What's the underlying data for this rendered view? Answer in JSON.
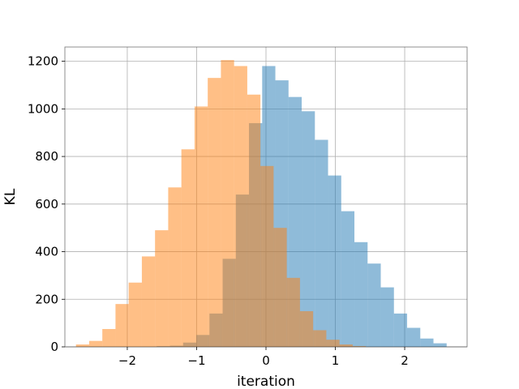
{
  "chart_data": {
    "type": "bar",
    "subtype": "overlapping-histogram",
    "title": "",
    "xlabel": "iteration",
    "ylabel": "KL",
    "xlim": [
      -2.9,
      2.9
    ],
    "ylim": [
      0,
      1260
    ],
    "xticks": [
      -2,
      -1,
      0,
      1,
      2
    ],
    "xtick_labels": [
      "−2",
      "−1",
      "0",
      "1",
      "2"
    ],
    "yticks": [
      0,
      200,
      400,
      600,
      800,
      1000,
      1200
    ],
    "ytick_labels": [
      "0",
      "200",
      "400",
      "600",
      "800",
      "1000",
      "1200"
    ],
    "grid": true,
    "legend": "none",
    "series": [
      {
        "color": "#1f77b4",
        "opacity": 0.5,
        "bin_edges": [
          -1.575,
          -1.385,
          -1.195,
          -1.005,
          -0.815,
          -0.625,
          -0.435,
          -0.245,
          -0.055,
          0.135,
          0.325,
          0.515,
          0.705,
          0.895,
          1.085,
          1.275,
          1.465,
          1.655,
          1.845,
          2.035,
          2.225,
          2.415,
          2.605
        ],
        "counts": [
          3,
          5,
          18,
          50,
          140,
          370,
          640,
          940,
          1180,
          1120,
          1050,
          990,
          870,
          720,
          570,
          440,
          350,
          250,
          140,
          80,
          35,
          15
        ]
      },
      {
        "color": "#ff7f0e",
        "opacity": 0.5,
        "bin_edges": [
          -2.74,
          -2.55,
          -2.36,
          -2.17,
          -1.98,
          -1.79,
          -1.6,
          -1.41,
          -1.22,
          -1.03,
          -0.84,
          -0.65,
          -0.46,
          -0.27,
          -0.08,
          0.11,
          0.3,
          0.49,
          0.68,
          0.87,
          1.06,
          1.25,
          1.44
        ],
        "counts": [
          10,
          25,
          75,
          180,
          270,
          380,
          490,
          670,
          830,
          1010,
          1130,
          1205,
          1180,
          1060,
          760,
          500,
          290,
          150,
          70,
          30,
          10,
          3
        ]
      }
    ]
  }
}
